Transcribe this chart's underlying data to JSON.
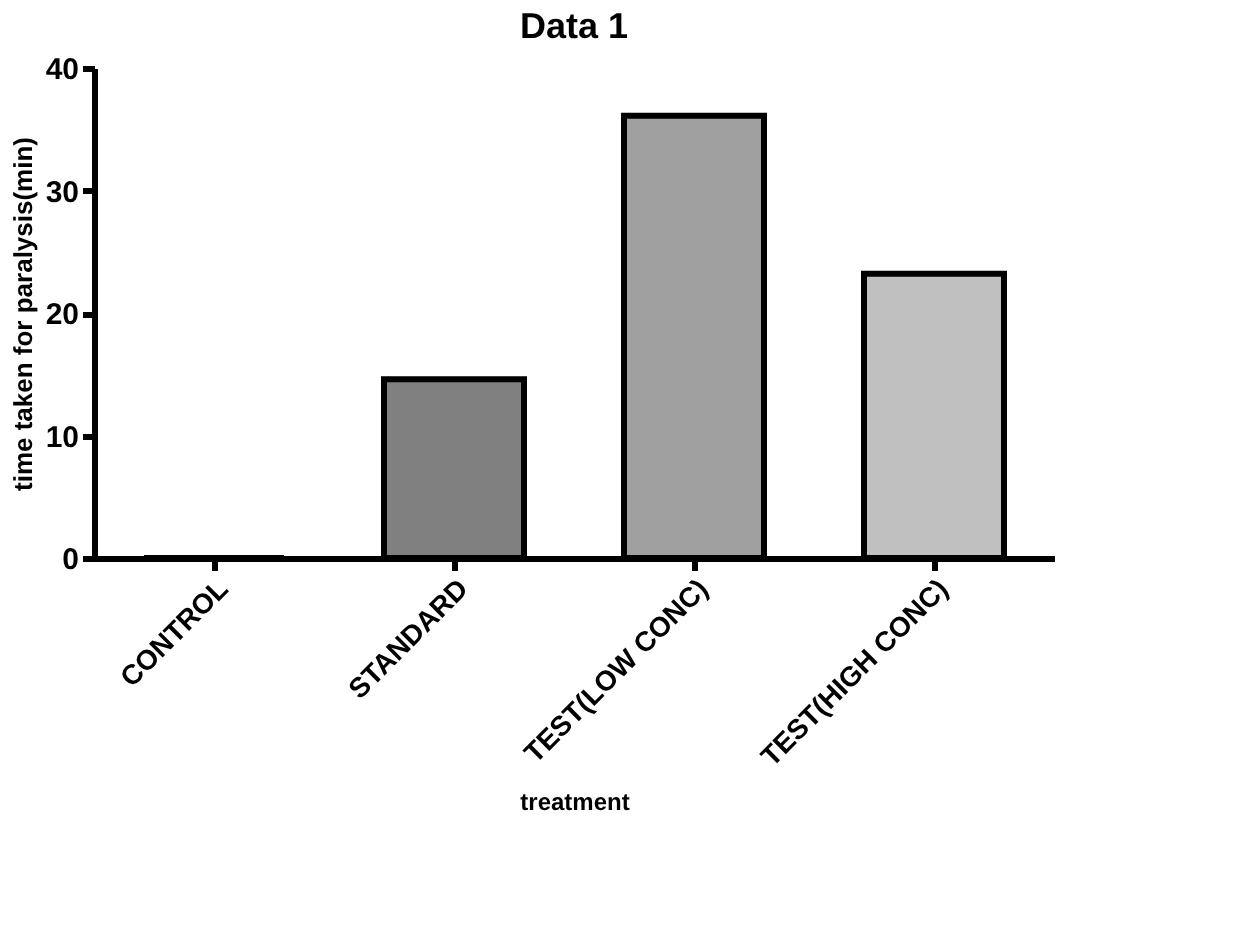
{
  "chart_data": {
    "type": "bar",
    "title": "Data 1",
    "xlabel": "treatment",
    "ylabel": "time taken for paralysis(min)",
    "categories": [
      "CONTROL",
      "STANDARD",
      "TEST(LOW CONC)",
      "TEST(HIGH CONC)"
    ],
    "values": [
      0,
      14.6,
      36.1,
      23.2
    ],
    "colors": [
      "#ffffff",
      "#808080",
      "#a0a0a0",
      "#c0c0c0"
    ],
    "ylim": [
      0,
      40
    ],
    "yticks": [
      0,
      10,
      20,
      30,
      40
    ],
    "grid": false
  }
}
